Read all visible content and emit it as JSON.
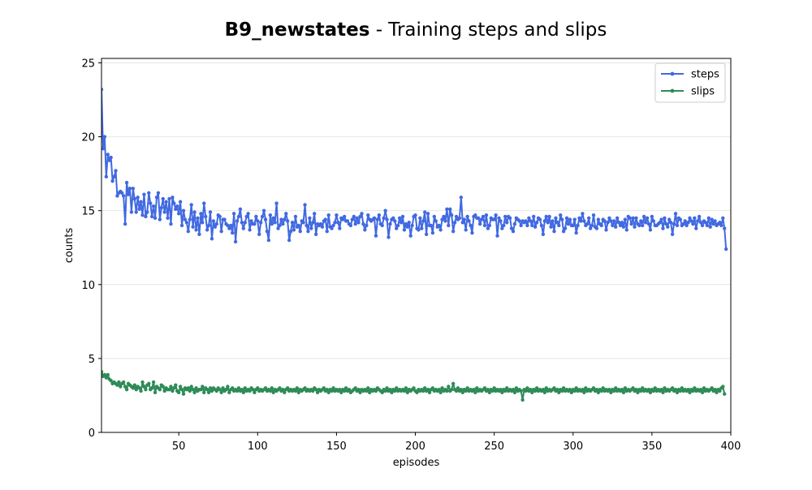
{
  "chart_data": {
    "type": "line",
    "title_bold": "B9_newstates",
    "title_rest": " - Training steps and slips",
    "xlabel": "episodes",
    "ylabel": "counts",
    "xlim": [
      1,
      400
    ],
    "ylim": [
      0,
      25.3
    ],
    "xticks": [
      50,
      100,
      150,
      200,
      250,
      300,
      350,
      400
    ],
    "yticks": [
      0,
      5,
      10,
      15,
      20,
      25
    ],
    "grid": "horizontal",
    "legend_position": "top-right",
    "x_start": 1,
    "series": [
      {
        "name": "steps",
        "color": "#4169e1",
        "values": [
          23.2,
          19.2,
          20.0,
          17.3,
          18.8,
          18.4,
          18.6,
          17.0,
          17.3,
          17.7,
          16.0,
          16.2,
          16.3,
          16.2,
          16.0,
          14.1,
          16.9,
          16.1,
          16.5,
          14.9,
          16.5,
          15.8,
          14.9,
          15.9,
          15.1,
          15.6,
          14.7,
          16.1,
          14.6,
          14.9,
          16.2,
          15.5,
          14.6,
          15.3,
          14.5,
          15.9,
          16.2,
          14.4,
          15.2,
          15.8,
          14.9,
          15.6,
          14.5,
          15.8,
          14.1,
          15.9,
          15.5,
          15.1,
          15.3,
          14.8,
          15.6,
          14.0,
          15.0,
          14.4,
          14.2,
          13.6,
          14.4,
          15.4,
          13.9,
          14.9,
          13.7,
          14.5,
          13.4,
          14.8,
          14.2,
          15.5,
          14.6,
          13.7,
          14.0,
          14.9,
          13.1,
          14.3,
          13.9,
          14.1,
          14.7,
          14.6,
          13.6,
          14.4,
          14.4,
          14.1,
          14.0,
          13.8,
          14.0,
          13.5,
          14.8,
          12.9,
          14.3,
          14.6,
          15.1,
          14.2,
          13.8,
          14.2,
          14.6,
          14.8,
          13.7,
          14.3,
          14.1,
          14.1,
          14.6,
          14.3,
          13.4,
          14.2,
          14.6,
          15.0,
          14.4,
          13.6,
          13.0,
          14.7,
          14.1,
          14.5,
          14.2,
          15.5,
          13.8,
          14.0,
          14.4,
          14.1,
          14.4,
          14.8,
          14.3,
          13.0,
          13.6,
          14.2,
          13.7,
          14.6,
          13.9,
          14.0,
          13.6,
          14.3,
          14.2,
          15.4,
          14.0,
          13.6,
          14.5,
          13.8,
          14.2,
          14.8,
          13.4,
          14.1,
          14.0,
          14.1,
          13.9,
          14.3,
          14.4,
          13.6,
          14.7,
          13.9,
          13.8,
          14.0,
          14.2,
          14.7,
          14.2,
          13.8,
          14.5,
          14.4,
          14.6,
          14.3,
          14.3,
          14.1,
          14.0,
          14.4,
          14.6,
          14.1,
          14.5,
          14.2,
          14.6,
          14.8,
          14.1,
          13.7,
          14.0,
          14.7,
          14.4,
          14.3,
          14.4,
          14.5,
          13.3,
          14.4,
          14.7,
          14.1,
          14.0,
          14.5,
          15.0,
          14.4,
          13.2,
          14.1,
          14.4,
          14.5,
          14.3,
          13.8,
          14.0,
          14.5,
          14.2,
          14.6,
          13.7,
          14.1,
          13.9,
          14.2,
          13.3,
          14.0,
          14.6,
          14.7,
          13.8,
          13.7,
          14.5,
          13.8,
          14.3,
          14.9,
          13.4,
          14.8,
          14.0,
          14.0,
          13.5,
          14.6,
          14.3,
          13.9,
          14.0,
          13.7,
          14.4,
          14.6,
          14.3,
          15.1,
          14.0,
          15.1,
          14.7,
          13.6,
          14.2,
          14.6,
          14.4,
          14.5,
          15.9,
          14.2,
          14.4,
          13.7,
          14.6,
          14.3,
          14.0,
          13.5,
          14.6,
          14.7,
          14.5,
          14.5,
          14.1,
          14.4,
          14.6,
          14.0,
          14.7,
          13.8,
          14.0,
          14.5,
          14.4,
          14.4,
          14.7,
          13.3,
          14.5,
          14.3,
          13.8,
          14.0,
          14.6,
          14.2,
          14.6,
          14.5,
          13.8,
          13.6,
          14.1,
          14.5,
          14.4,
          14.3,
          14.0,
          14.3,
          14.2,
          14.3,
          14.0,
          14.5,
          14.3,
          14.0,
          14.6,
          13.9,
          14.2,
          14.5,
          14.4,
          14.0,
          13.4,
          14.3,
          14.6,
          14.2,
          14.6,
          13.9,
          14.3,
          13.6,
          14.5,
          14.2,
          14.0,
          14.7,
          14.4,
          13.6,
          13.8,
          14.5,
          14.1,
          14.4,
          14.0,
          14.0,
          14.4,
          13.5,
          14.0,
          14.5,
          14.3,
          14.8,
          14.3,
          14.0,
          14.1,
          14.5,
          13.8,
          14.0,
          14.7,
          13.9,
          13.8,
          14.4,
          14.1,
          14.0,
          14.4,
          14.3,
          13.7,
          14.2,
          14.5,
          14.3,
          14.0,
          14.3,
          13.9,
          14.5,
          14.2,
          14.0,
          14.2,
          13.9,
          14.4,
          13.7,
          14.6,
          14.5,
          14.1,
          14.5,
          13.9,
          14.5,
          14.1,
          14.0,
          14.3,
          14.0,
          14.6,
          14.2,
          14.5,
          14.1,
          13.7,
          14.6,
          14.3,
          14.0,
          14.0,
          14.1,
          14.2,
          14.4,
          13.8,
          14.5,
          14.1,
          13.9,
          14.4,
          14.2,
          13.4,
          14.1,
          14.8,
          14.0,
          14.5,
          14.4,
          14.0,
          14.1,
          14.3,
          14.0,
          14.2,
          14.5,
          14.3,
          14.1,
          14.5,
          13.8,
          14.3,
          14.6,
          14.2,
          14.0,
          14.3,
          14.2,
          14.0,
          14.5,
          13.9,
          14.4,
          14.1,
          14.3,
          14.0,
          14.1,
          14.2,
          14.0,
          14.5,
          13.8,
          12.4
        ]
      },
      {
        "name": "slips",
        "color": "#2e8b57",
        "values": [
          4.1,
          3.8,
          3.9,
          3.7,
          3.9,
          3.6,
          3.5,
          3.3,
          3.4,
          3.3,
          3.2,
          3.4,
          3.1,
          3.3,
          3.4,
          3.1,
          2.9,
          3.3,
          3.2,
          3.1,
          3.0,
          3.2,
          2.9,
          3.1,
          3.0,
          2.8,
          3.4,
          3.1,
          2.9,
          3.2,
          3.3,
          2.9,
          3.0,
          3.4,
          2.7,
          3.1,
          3.0,
          2.9,
          3.2,
          3.1,
          2.8,
          3.0,
          2.9,
          2.9,
          3.1,
          2.8,
          3.0,
          3.2,
          2.8,
          2.7,
          3.1,
          2.9,
          2.6,
          3.0,
          2.9,
          3.0,
          2.8,
          3.1,
          2.9,
          2.7,
          3.0,
          2.8,
          2.9,
          2.9,
          3.1,
          2.7,
          3.0,
          2.9,
          2.7,
          3.0,
          2.8,
          3.0,
          2.9,
          2.8,
          3.0,
          2.9,
          2.7,
          3.0,
          2.8,
          2.9,
          3.1,
          2.7,
          2.9,
          3.0,
          2.8,
          2.9,
          2.8,
          3.0,
          2.8,
          2.9,
          2.7,
          3.0,
          2.8,
          2.9,
          2.8,
          3.0,
          2.9,
          2.7,
          2.9,
          3.0,
          2.8,
          2.9,
          2.8,
          2.9,
          3.0,
          2.8,
          2.9,
          2.8,
          3.0,
          2.7,
          2.9,
          2.8,
          2.9,
          3.0,
          2.8,
          2.9,
          2.7,
          2.9,
          3.0,
          2.8,
          2.9,
          2.8,
          2.9,
          2.8,
          3.0,
          2.7,
          2.9,
          2.8,
          2.9,
          3.0,
          2.8,
          2.9,
          2.8,
          2.9,
          2.8,
          3.0,
          2.9,
          2.7,
          2.9,
          2.8,
          2.9,
          3.0,
          2.8,
          2.9,
          2.7,
          2.9,
          2.8,
          3.0,
          2.8,
          2.9,
          2.8,
          2.9,
          2.7,
          2.9,
          2.8,
          3.0,
          2.8,
          2.9,
          2.7,
          2.8,
          2.9,
          3.0,
          2.8,
          2.9,
          2.7,
          2.9,
          2.8,
          2.9,
          2.8,
          3.0,
          2.7,
          2.9,
          2.8,
          2.9,
          2.8,
          3.0,
          2.9,
          2.8,
          2.7,
          2.9,
          2.8,
          3.0,
          2.8,
          2.9,
          2.7,
          2.9,
          2.8,
          3.0,
          2.8,
          2.9,
          2.8,
          2.9,
          2.8,
          3.0,
          2.7,
          2.9,
          2.8,
          2.9,
          3.0,
          2.8,
          2.7,
          2.9,
          2.8,
          2.9,
          2.8,
          3.0,
          2.8,
          2.9,
          2.7,
          2.9,
          3.0,
          2.8,
          2.9,
          2.8,
          2.9,
          2.7,
          3.0,
          2.8,
          2.9,
          2.8,
          3.1,
          2.8,
          2.9,
          3.3,
          2.9,
          2.8,
          3.0,
          2.8,
          2.9,
          2.7,
          2.9,
          2.8,
          3.0,
          2.8,
          2.9,
          2.8,
          2.9,
          2.7,
          3.0,
          2.8,
          2.9,
          2.8,
          2.9,
          3.0,
          2.8,
          2.9,
          2.7,
          2.9,
          2.8,
          3.0,
          2.8,
          2.9,
          2.8,
          2.9,
          2.7,
          2.9,
          2.8,
          3.0,
          2.8,
          2.9,
          2.8,
          2.9,
          2.7,
          3.0,
          2.8,
          2.9,
          2.8,
          2.2,
          2.9,
          2.8,
          3.0,
          2.8,
          2.9,
          2.7,
          2.9,
          2.8,
          3.0,
          2.8,
          2.9,
          2.8,
          2.9,
          2.7,
          3.0,
          2.8,
          2.9,
          2.8,
          2.9,
          3.0,
          2.8,
          2.9,
          2.7,
          2.9,
          2.8,
          3.0,
          2.8,
          2.9,
          2.8,
          2.9,
          2.7,
          2.9,
          2.8,
          3.0,
          2.8,
          2.9,
          2.8,
          2.9,
          2.7,
          3.0,
          2.8,
          2.9,
          2.8,
          2.9,
          3.0,
          2.8,
          2.9,
          2.7,
          2.9,
          2.8,
          3.0,
          2.8,
          2.9,
          2.8,
          2.9,
          2.7,
          2.9,
          2.8,
          3.0,
          2.8,
          2.9,
          2.8,
          2.9,
          2.7,
          3.0,
          2.8,
          2.9,
          2.8,
          2.9,
          3.0,
          2.8,
          2.9,
          2.7,
          2.9,
          2.8,
          3.0,
          2.8,
          2.9,
          2.8,
          2.9,
          2.7,
          2.9,
          2.8,
          3.0,
          2.8,
          2.9,
          2.8,
          2.9,
          2.7,
          3.0,
          2.8,
          2.9,
          2.8,
          2.9,
          3.0,
          2.8,
          2.9,
          2.7,
          2.9,
          2.8,
          3.0,
          2.8,
          2.9,
          2.8,
          2.9,
          2.7,
          2.9,
          2.8,
          3.0,
          2.8,
          2.9,
          2.8,
          2.9,
          2.7,
          3.0,
          2.8,
          2.9,
          2.8,
          2.9,
          3.0,
          2.8,
          2.9,
          2.7,
          2.9,
          2.8,
          3.0,
          3.1,
          2.6
        ]
      }
    ]
  }
}
